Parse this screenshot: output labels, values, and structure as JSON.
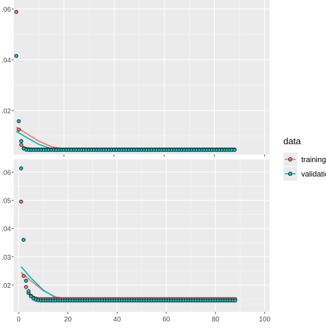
{
  "chart_data": [
    {
      "type": "scatter",
      "panel": "top",
      "x_ticks": [
        20,
        40,
        60,
        80,
        100
      ],
      "y_ticks": [
        0.02,
        0.04,
        0.06
      ],
      "y_tick_labels": [
        ".02",
        ".04",
        ".06"
      ],
      "xlim": [
        0,
        102
      ],
      "ylim": [
        0.0027,
        0.0635
      ],
      "grid": true,
      "series": [
        {
          "name": "training",
          "points": [
            [
              1,
              0.0588
            ],
            [
              2,
              0.0125
            ],
            [
              3,
              0.0065
            ],
            [
              4,
              0.0052
            ],
            [
              5,
              0.0049
            ],
            [
              6,
              0.0048
            ],
            [
              7,
              0.0047
            ],
            [
              8,
              0.0047
            ],
            [
              9,
              0.0047
            ],
            [
              10,
              0.0047
            ],
            [
              12,
              0.0047
            ],
            [
              15,
              0.0047
            ],
            [
              20,
              0.0047
            ],
            [
              30,
              0.0047
            ],
            [
              40,
              0.0047
            ],
            [
              50,
              0.0047
            ],
            [
              60,
              0.0047
            ],
            [
              70,
              0.0047
            ],
            [
              80,
              0.0047
            ],
            [
              88,
              0.0047
            ]
          ],
          "smooth": [
            [
              1,
              0.0135
            ],
            [
              5,
              0.011
            ],
            [
              10,
              0.008
            ],
            [
              15,
              0.0058
            ],
            [
              20,
              0.0049
            ],
            [
              30,
              0.0047
            ],
            [
              50,
              0.0046
            ],
            [
              70,
              0.0046
            ],
            [
              88,
              0.0046
            ]
          ]
        },
        {
          "name": "validation",
          "points": [
            [
              1,
              0.0415
            ],
            [
              2,
              0.0158
            ],
            [
              3,
              0.008
            ],
            [
              4,
              0.005
            ],
            [
              5,
              0.0046
            ],
            [
              6,
              0.0045
            ],
            [
              7,
              0.0045
            ],
            [
              8,
              0.0045
            ],
            [
              9,
              0.0045
            ],
            [
              10,
              0.0045
            ],
            [
              12,
              0.0045
            ],
            [
              15,
              0.0045
            ],
            [
              20,
              0.0045
            ],
            [
              30,
              0.0045
            ],
            [
              40,
              0.0045
            ],
            [
              50,
              0.0045
            ],
            [
              60,
              0.0045
            ],
            [
              70,
              0.0045
            ],
            [
              80,
              0.0045
            ],
            [
              88,
              0.0045
            ]
          ],
          "smooth": [
            [
              1,
              0.0118
            ],
            [
              5,
              0.0095
            ],
            [
              10,
              0.0067
            ],
            [
              15,
              0.005
            ],
            [
              20,
              0.0045
            ],
            [
              30,
              0.0044
            ],
            [
              50,
              0.0044
            ],
            [
              70,
              0.0044
            ],
            [
              88,
              0.0044
            ]
          ]
        }
      ]
    },
    {
      "type": "scatter",
      "panel": "bottom",
      "x_ticks": [
        0,
        20,
        40,
        60,
        80,
        100
      ],
      "y_ticks": [
        0.02,
        0.03,
        0.04,
        0.05,
        0.06
      ],
      "y_tick_labels": [
        ".02",
        ".03",
        ".04",
        ".05",
        ".06"
      ],
      "xlim": [
        -2,
        102
      ],
      "ylim": [
        0.0105,
        0.0645
      ],
      "grid": true,
      "series": [
        {
          "name": "training",
          "points": [
            [
              1,
              0.0495
            ],
            [
              2,
              0.0232
            ],
            [
              3,
              0.0193
            ],
            [
              4,
              0.0172
            ],
            [
              5,
              0.0162
            ],
            [
              6,
              0.0155
            ],
            [
              7,
              0.0152
            ],
            [
              8,
              0.015
            ],
            [
              9,
              0.015
            ],
            [
              10,
              0.015
            ],
            [
              12,
              0.015
            ],
            [
              15,
              0.015
            ],
            [
              20,
              0.015
            ],
            [
              30,
              0.015
            ],
            [
              40,
              0.015
            ],
            [
              50,
              0.015
            ],
            [
              60,
              0.015
            ],
            [
              70,
              0.015
            ],
            [
              80,
              0.015
            ],
            [
              88,
              0.015
            ]
          ],
          "smooth": [
            [
              1,
              0.0245
            ],
            [
              5,
              0.0215
            ],
            [
              10,
              0.018
            ],
            [
              15,
              0.0158
            ],
            [
              20,
              0.015
            ],
            [
              30,
              0.0149
            ],
            [
              50,
              0.0149
            ],
            [
              70,
              0.0149
            ],
            [
              88,
              0.0149
            ]
          ]
        },
        {
          "name": "validation",
          "points": [
            [
              1,
              0.0613
            ],
            [
              2,
              0.036
            ],
            [
              3,
              0.0215
            ],
            [
              4,
              0.0178
            ],
            [
              5,
              0.016
            ],
            [
              6,
              0.0152
            ],
            [
              7,
              0.0148
            ],
            [
              8,
              0.0146
            ],
            [
              9,
              0.0145
            ],
            [
              10,
              0.0145
            ],
            [
              12,
              0.0145
            ],
            [
              15,
              0.0145
            ],
            [
              20,
              0.0145
            ],
            [
              30,
              0.0145
            ],
            [
              40,
              0.0145
            ],
            [
              50,
              0.0145
            ],
            [
              60,
              0.0145
            ],
            [
              70,
              0.0145
            ],
            [
              80,
              0.0145
            ],
            [
              88,
              0.0145
            ]
          ],
          "smooth": [
            [
              1,
              0.0265
            ],
            [
              5,
              0.0225
            ],
            [
              10,
              0.0182
            ],
            [
              15,
              0.0155
            ],
            [
              20,
              0.0146
            ],
            [
              30,
              0.0144
            ],
            [
              50,
              0.0144
            ],
            [
              70,
              0.0144
            ],
            [
              88,
              0.0144
            ]
          ]
        }
      ]
    }
  ],
  "legend": {
    "title": "data",
    "items": [
      "training",
      "validation"
    ]
  },
  "colors": {
    "training": "#F8766D",
    "validation": "#00BFC4",
    "panel_bg": "#EBEBEB",
    "grid_major": "#FFFFFF",
    "point_edge": "#222222"
  }
}
